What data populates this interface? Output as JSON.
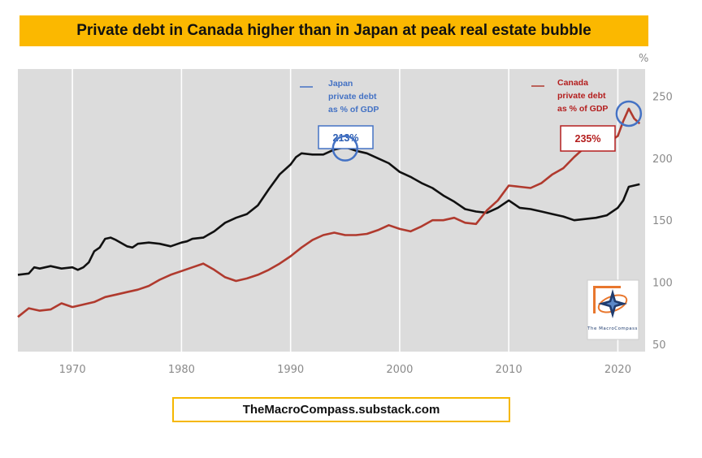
{
  "title": "Private debt in Canada higher than in Japan at peak real estate bubble",
  "footer": "TheMacroCompass.substack.com",
  "logo_text": "The MacroCompass",
  "colors": {
    "title_bg": "#fbb800",
    "plot_bg": "#dcdcdc",
    "japan": "#111111",
    "canada": "#b03a2e",
    "highlight": "#4472c4",
    "canada_label": "#b41e1e"
  },
  "chart_data": {
    "type": "line",
    "unit_label": "%",
    "xlim": [
      1965,
      2022.5
    ],
    "ylim": [
      44,
      272
    ],
    "x_ticks": [
      1970,
      1980,
      1990,
      2000,
      2010,
      2020
    ],
    "y_ticks": [
      50,
      100,
      150,
      200,
      250
    ],
    "grid": "vertical",
    "y_axis_side": "right",
    "legend": "inline-annotations",
    "series": [
      {
        "name": "Japan private debt as % of GDP",
        "legend_lines": [
          "Japan",
          "private debt",
          "as % of GDP"
        ],
        "color": "#111111",
        "points": [
          [
            1965,
            106
          ],
          [
            1966,
            107
          ],
          [
            1966.5,
            112
          ],
          [
            1967,
            111
          ],
          [
            1968,
            113
          ],
          [
            1969,
            111
          ],
          [
            1970,
            112
          ],
          [
            1970.5,
            110
          ],
          [
            1971,
            112
          ],
          [
            1971.5,
            116
          ],
          [
            1972,
            125
          ],
          [
            1972.5,
            128
          ],
          [
            1973,
            135
          ],
          [
            1973.5,
            136
          ],
          [
            1974,
            134
          ],
          [
            1975,
            129
          ],
          [
            1975.5,
            128
          ],
          [
            1976,
            131
          ],
          [
            1977,
            132
          ],
          [
            1978,
            131
          ],
          [
            1979,
            129
          ],
          [
            1980,
            132
          ],
          [
            1980.5,
            133
          ],
          [
            1981,
            135
          ],
          [
            1982,
            136
          ],
          [
            1983,
            141
          ],
          [
            1984,
            148
          ],
          [
            1985,
            152
          ],
          [
            1986,
            155
          ],
          [
            1987,
            162
          ],
          [
            1988,
            175
          ],
          [
            1989,
            187
          ],
          [
            1990,
            195
          ],
          [
            1990.5,
            201
          ],
          [
            1991,
            204
          ],
          [
            1992,
            203
          ],
          [
            1993,
            203
          ],
          [
            1994,
            207
          ],
          [
            1995,
            209
          ],
          [
            1996,
            206
          ],
          [
            1997,
            204
          ],
          [
            1998,
            200
          ],
          [
            1999,
            196
          ],
          [
            2000,
            189
          ],
          [
            2001,
            185
          ],
          [
            2002,
            180
          ],
          [
            2003,
            176
          ],
          [
            2004,
            170
          ],
          [
            2005,
            165
          ],
          [
            2006,
            159
          ],
          [
            2007,
            157
          ],
          [
            2008,
            156
          ],
          [
            2009,
            160
          ],
          [
            2010,
            166
          ],
          [
            2011,
            160
          ],
          [
            2012,
            159
          ],
          [
            2013,
            157
          ],
          [
            2014,
            155
          ],
          [
            2015,
            153
          ],
          [
            2016,
            150
          ],
          [
            2017,
            151
          ],
          [
            2018,
            152
          ],
          [
            2019,
            154
          ],
          [
            2020,
            160
          ],
          [
            2020.5,
            166
          ],
          [
            2021,
            177
          ],
          [
            2022,
            179
          ]
        ]
      },
      {
        "name": "Canada private debt as % of GDP",
        "legend_lines": [
          "Canada",
          "private debt",
          "as % of GDP"
        ],
        "color": "#b03a2e",
        "points": [
          [
            1965,
            72
          ],
          [
            1966,
            79
          ],
          [
            1967,
            77
          ],
          [
            1968,
            78
          ],
          [
            1969,
            83
          ],
          [
            1970,
            80
          ],
          [
            1971,
            82
          ],
          [
            1972,
            84
          ],
          [
            1973,
            88
          ],
          [
            1974,
            90
          ],
          [
            1975,
            92
          ],
          [
            1976,
            94
          ],
          [
            1977,
            97
          ],
          [
            1978,
            102
          ],
          [
            1979,
            106
          ],
          [
            1980,
            109
          ],
          [
            1981,
            112
          ],
          [
            1982,
            115
          ],
          [
            1983,
            110
          ],
          [
            1984,
            104
          ],
          [
            1985,
            101
          ],
          [
            1986,
            103
          ],
          [
            1987,
            106
          ],
          [
            1988,
            110
          ],
          [
            1989,
            115
          ],
          [
            1990,
            121
          ],
          [
            1991,
            128
          ],
          [
            1992,
            134
          ],
          [
            1993,
            138
          ],
          [
            1994,
            140
          ],
          [
            1995,
            138
          ],
          [
            1996,
            138
          ],
          [
            1997,
            139
          ],
          [
            1998,
            142
          ],
          [
            1999,
            146
          ],
          [
            2000,
            143
          ],
          [
            2001,
            141
          ],
          [
            2002,
            145
          ],
          [
            2003,
            150
          ],
          [
            2004,
            150
          ],
          [
            2005,
            152
          ],
          [
            2006,
            148
          ],
          [
            2007,
            147
          ],
          [
            2008,
            158
          ],
          [
            2009,
            166
          ],
          [
            2010,
            178
          ],
          [
            2011,
            177
          ],
          [
            2012,
            176
          ],
          [
            2013,
            180
          ],
          [
            2014,
            187
          ],
          [
            2015,
            192
          ],
          [
            2016,
            201
          ],
          [
            2017,
            209
          ],
          [
            2018,
            210
          ],
          [
            2019,
            212
          ],
          [
            2020,
            218
          ],
          [
            2020.5,
            230
          ],
          [
            2021,
            240
          ],
          [
            2021.5,
            232
          ],
          [
            2022,
            228
          ]
        ]
      }
    ],
    "annotations": [
      {
        "series": "Japan",
        "label": "213%",
        "x": 1995,
        "y": 208
      },
      {
        "series": "Canada",
        "label": "235%",
        "x": 2021,
        "y": 236
      }
    ]
  }
}
